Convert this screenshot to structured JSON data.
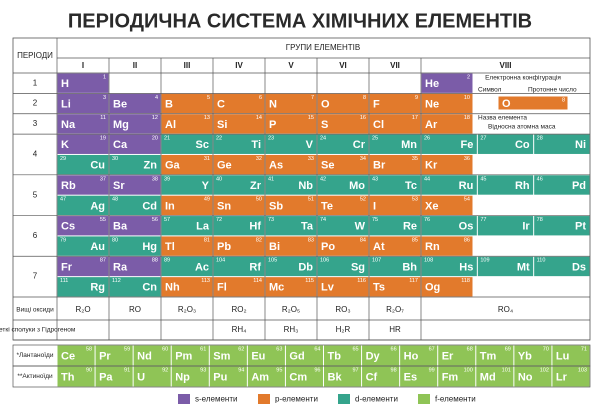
{
  "title": "ПЕРІОДИЧНА СИСТЕМА ХІМІЧНИХ ЕЛЕМЕНТІВ",
  "header": {
    "periods_label": "ПЕРІОДИ",
    "groups_label": "ГРУПИ ЕЛЕМЕНТІВ",
    "groups": [
      "I",
      "II",
      "III",
      "IV",
      "V",
      "VI",
      "VII",
      "VIII"
    ]
  },
  "periods": [
    {
      "label": "1",
      "rows": [
        [
          [
            {
              "symbol": "H",
              "number": 1,
              "block": "s"
            }
          ],
          [],
          [],
          [],
          [],
          [],
          [],
          [
            {
              "symbol": "He",
              "number": 2,
              "block": "s"
            }
          ]
        ]
      ]
    },
    {
      "label": "2",
      "rows": [
        [
          [
            {
              "symbol": "Li",
              "number": 3,
              "block": "s"
            }
          ],
          [
            {
              "symbol": "Be",
              "number": 4,
              "block": "s"
            }
          ],
          [
            {
              "symbol": "B",
              "number": 5,
              "block": "p"
            }
          ],
          [
            {
              "symbol": "C",
              "number": 6,
              "block": "p"
            }
          ],
          [
            {
              "symbol": "N",
              "number": 7,
              "block": "p"
            }
          ],
          [
            {
              "symbol": "O",
              "number": 8,
              "block": "p"
            }
          ],
          [
            {
              "symbol": "F",
              "number": 9,
              "block": "p"
            }
          ],
          [
            {
              "symbol": "Ne",
              "number": 10,
              "block": "p"
            }
          ]
        ]
      ]
    },
    {
      "label": "3",
      "rows": [
        [
          [
            {
              "symbol": "Na",
              "number": 11,
              "block": "s"
            }
          ],
          [
            {
              "symbol": "Mg",
              "number": 12,
              "block": "s"
            }
          ],
          [
            {
              "symbol": "Al",
              "number": 13,
              "block": "p"
            }
          ],
          [
            {
              "symbol": "Si",
              "number": 14,
              "block": "p"
            }
          ],
          [
            {
              "symbol": "P",
              "number": 15,
              "block": "p"
            }
          ],
          [
            {
              "symbol": "S",
              "number": 16,
              "block": "p"
            }
          ],
          [
            {
              "symbol": "Cl",
              "number": 17,
              "block": "p"
            }
          ],
          [
            {
              "symbol": "Ar",
              "number": 18,
              "block": "p"
            }
          ]
        ]
      ]
    },
    {
      "label": "4",
      "rows": [
        [
          [
            {
              "symbol": "K",
              "number": 19,
              "block": "s"
            }
          ],
          [
            {
              "symbol": "Ca",
              "number": 20,
              "block": "s"
            }
          ],
          [
            {
              "symbol": "Sc",
              "number": 21,
              "block": "d"
            }
          ],
          [
            {
              "symbol": "Ti",
              "number": 22,
              "block": "d"
            }
          ],
          [
            {
              "symbol": "V",
              "number": 23,
              "block": "d"
            }
          ],
          [
            {
              "symbol": "Cr",
              "number": 24,
              "block": "d"
            }
          ],
          [
            {
              "symbol": "Mn",
              "number": 25,
              "block": "d"
            }
          ],
          [
            {
              "symbol": "Fe",
              "number": 26,
              "block": "d"
            },
            {
              "symbol": "Co",
              "number": 27,
              "block": "d"
            },
            {
              "symbol": "Ni",
              "number": 28,
              "block": "d"
            }
          ]
        ],
        [
          [
            {
              "symbol": "Cu",
              "number": 29,
              "block": "d"
            }
          ],
          [
            {
              "symbol": "Zn",
              "number": 30,
              "block": "d"
            }
          ],
          [
            {
              "symbol": "Ga",
              "number": 31,
              "block": "p"
            }
          ],
          [
            {
              "symbol": "Ge",
              "number": 32,
              "block": "p"
            }
          ],
          [
            {
              "symbol": "As",
              "number": 33,
              "block": "p"
            }
          ],
          [
            {
              "symbol": "Se",
              "number": 34,
              "block": "p"
            }
          ],
          [
            {
              "symbol": "Br",
              "number": 35,
              "block": "p"
            }
          ],
          [
            {
              "symbol": "Kr",
              "number": 36,
              "block": "p"
            }
          ]
        ]
      ]
    },
    {
      "label": "5",
      "rows": [
        [
          [
            {
              "symbol": "Rb",
              "number": 37,
              "block": "s"
            }
          ],
          [
            {
              "symbol": "Sr",
              "number": 38,
              "block": "s"
            }
          ],
          [
            {
              "symbol": "Y",
              "number": 39,
              "block": "d"
            }
          ],
          [
            {
              "symbol": "Zr",
              "number": 40,
              "block": "d"
            }
          ],
          [
            {
              "symbol": "Nb",
              "number": 41,
              "block": "d"
            }
          ],
          [
            {
              "symbol": "Mo",
              "number": 42,
              "block": "d"
            }
          ],
          [
            {
              "symbol": "Tc",
              "number": 43,
              "block": "d"
            }
          ],
          [
            {
              "symbol": "Ru",
              "number": 44,
              "block": "d"
            },
            {
              "symbol": "Rh",
              "number": 45,
              "block": "d"
            },
            {
              "symbol": "Pd",
              "number": 46,
              "block": "d"
            }
          ]
        ],
        [
          [
            {
              "symbol": "Ag",
              "number": 47,
              "block": "d"
            }
          ],
          [
            {
              "symbol": "Cd",
              "number": 48,
              "block": "d"
            }
          ],
          [
            {
              "symbol": "In",
              "number": 49,
              "block": "p"
            }
          ],
          [
            {
              "symbol": "Sn",
              "number": 50,
              "block": "p"
            }
          ],
          [
            {
              "symbol": "Sb",
              "number": 51,
              "block": "p"
            }
          ],
          [
            {
              "symbol": "Te",
              "number": 52,
              "block": "p"
            }
          ],
          [
            {
              "symbol": "I",
              "number": 53,
              "block": "p"
            }
          ],
          [
            {
              "symbol": "Xe",
              "number": 54,
              "block": "p"
            }
          ]
        ]
      ]
    },
    {
      "label": "6",
      "rows": [
        [
          [
            {
              "symbol": "Cs",
              "number": 55,
              "block": "s"
            }
          ],
          [
            {
              "symbol": "Ba",
              "number": 56,
              "block": "s"
            }
          ],
          [
            {
              "symbol": "La",
              "number": 57,
              "block": "d"
            }
          ],
          [
            {
              "symbol": "Hf",
              "number": 72,
              "block": "d"
            }
          ],
          [
            {
              "symbol": "Ta",
              "number": 73,
              "block": "d"
            }
          ],
          [
            {
              "symbol": "W",
              "number": 74,
              "block": "d"
            }
          ],
          [
            {
              "symbol": "Re",
              "number": 75,
              "block": "d"
            }
          ],
          [
            {
              "symbol": "Os",
              "number": 76,
              "block": "d"
            },
            {
              "symbol": "Ir",
              "number": 77,
              "block": "d"
            },
            {
              "symbol": "Pt",
              "number": 78,
              "block": "d"
            }
          ]
        ],
        [
          [
            {
              "symbol": "Au",
              "number": 79,
              "block": "d"
            }
          ],
          [
            {
              "symbol": "Hg",
              "number": 80,
              "block": "d"
            }
          ],
          [
            {
              "symbol": "Tl",
              "number": 81,
              "block": "p"
            }
          ],
          [
            {
              "symbol": "Pb",
              "number": 82,
              "block": "p"
            }
          ],
          [
            {
              "symbol": "Bi",
              "number": 83,
              "block": "p"
            }
          ],
          [
            {
              "symbol": "Po",
              "number": 84,
              "block": "p"
            }
          ],
          [
            {
              "symbol": "At",
              "number": 85,
              "block": "p"
            }
          ],
          [
            {
              "symbol": "Rn",
              "number": 86,
              "block": "p"
            }
          ]
        ]
      ]
    },
    {
      "label": "7",
      "rows": [
        [
          [
            {
              "symbol": "Fr",
              "number": 87,
              "block": "s"
            }
          ],
          [
            {
              "symbol": "Ra",
              "number": 88,
              "block": "s"
            }
          ],
          [
            {
              "symbol": "Ac",
              "number": 89,
              "block": "d"
            }
          ],
          [
            {
              "symbol": "Rf",
              "number": 104,
              "block": "d"
            }
          ],
          [
            {
              "symbol": "Db",
              "number": 105,
              "block": "d"
            }
          ],
          [
            {
              "symbol": "Sg",
              "number": 106,
              "block": "d"
            }
          ],
          [
            {
              "symbol": "Bh",
              "number": 107,
              "block": "d"
            }
          ],
          [
            {
              "symbol": "Hs",
              "number": 108,
              "block": "d"
            },
            {
              "symbol": "Mt",
              "number": 109,
              "block": "d"
            },
            {
              "symbol": "Ds",
              "number": 110,
              "block": "d"
            }
          ]
        ],
        [
          [
            {
              "symbol": "Rg",
              "number": 111,
              "block": "d"
            }
          ],
          [
            {
              "symbol": "Cn",
              "number": 112,
              "block": "d"
            }
          ],
          [
            {
              "symbol": "Nh",
              "number": 113,
              "block": "p"
            }
          ],
          [
            {
              "symbol": "Fl",
              "number": 114,
              "block": "p"
            }
          ],
          [
            {
              "symbol": "Mc",
              "number": 115,
              "block": "p"
            }
          ],
          [
            {
              "symbol": "Lv",
              "number": 116,
              "block": "p"
            }
          ],
          [
            {
              "symbol": "Ts",
              "number": 117,
              "block": "p"
            }
          ],
          [
            {
              "symbol": "Og",
              "number": 118,
              "block": "p"
            }
          ]
        ]
      ]
    }
  ],
  "oxides": {
    "label": "Вищі оксиди",
    "values": [
      "R₂O",
      "RO",
      "R₂O₃",
      "RO₂",
      "R₂O₅",
      "RO₃",
      "R₂O₇",
      "RO₄"
    ]
  },
  "hydrides": {
    "label": "Леткі сполуки з Гідрогеном",
    "values": [
      null,
      null,
      null,
      "RH₄",
      "RH₃",
      "H₂R",
      "HR",
      null
    ]
  },
  "lanthanides": {
    "label": "*Лантаноїди",
    "elements": [
      {
        "symbol": "Ce",
        "number": 58
      },
      {
        "symbol": "Pr",
        "number": 59
      },
      {
        "symbol": "Nd",
        "number": 60
      },
      {
        "symbol": "Pm",
        "number": 61
      },
      {
        "symbol": "Sm",
        "number": 62
      },
      {
        "symbol": "Eu",
        "number": 63
      },
      {
        "symbol": "Gd",
        "number": 64
      },
      {
        "symbol": "Tb",
        "number": 65
      },
      {
        "symbol": "Dy",
        "number": 66
      },
      {
        "symbol": "Ho",
        "number": 67
      },
      {
        "symbol": "Er",
        "number": 68
      },
      {
        "symbol": "Tm",
        "number": 69
      },
      {
        "symbol": "Yb",
        "number": 70
      },
      {
        "symbol": "Lu",
        "number": 71
      }
    ]
  },
  "actinides": {
    "label": "**Актиноїди",
    "elements": [
      {
        "symbol": "Th",
        "number": 90
      },
      {
        "symbol": "Pa",
        "number": 91
      },
      {
        "symbol": "U",
        "number": 92
      },
      {
        "symbol": "Np",
        "number": 93
      },
      {
        "symbol": "Pu",
        "number": 94
      },
      {
        "symbol": "Am",
        "number": 95
      },
      {
        "symbol": "Cm",
        "number": 96
      },
      {
        "symbol": "Bk",
        "number": 97
      },
      {
        "symbol": "Cf",
        "number": 98
      },
      {
        "symbol": "Es",
        "number": 99
      },
      {
        "symbol": "Fm",
        "number": 100
      },
      {
        "symbol": "Md",
        "number": 101
      },
      {
        "symbol": "No",
        "number": 102
      },
      {
        "symbol": "Lr",
        "number": 103
      }
    ]
  },
  "key": {
    "symbol": "O",
    "number": 8,
    "block": "p",
    "config_label": "Електронна конфігурація",
    "symbol_label": "Символ",
    "number_label": "Протонне число",
    "name_label": "Назва елемента",
    "mass_label": "Відносна атомна маса"
  },
  "legend": [
    {
      "key": "s",
      "label": "s-елементи",
      "color": "#7b5ca8"
    },
    {
      "key": "p",
      "label": "p-елементи",
      "color": "#e27a2c"
    },
    {
      "key": "d",
      "label": "d-елементи",
      "color": "#35a48c"
    },
    {
      "key": "f",
      "label": "f-елементи",
      "color": "#8fc456"
    }
  ]
}
